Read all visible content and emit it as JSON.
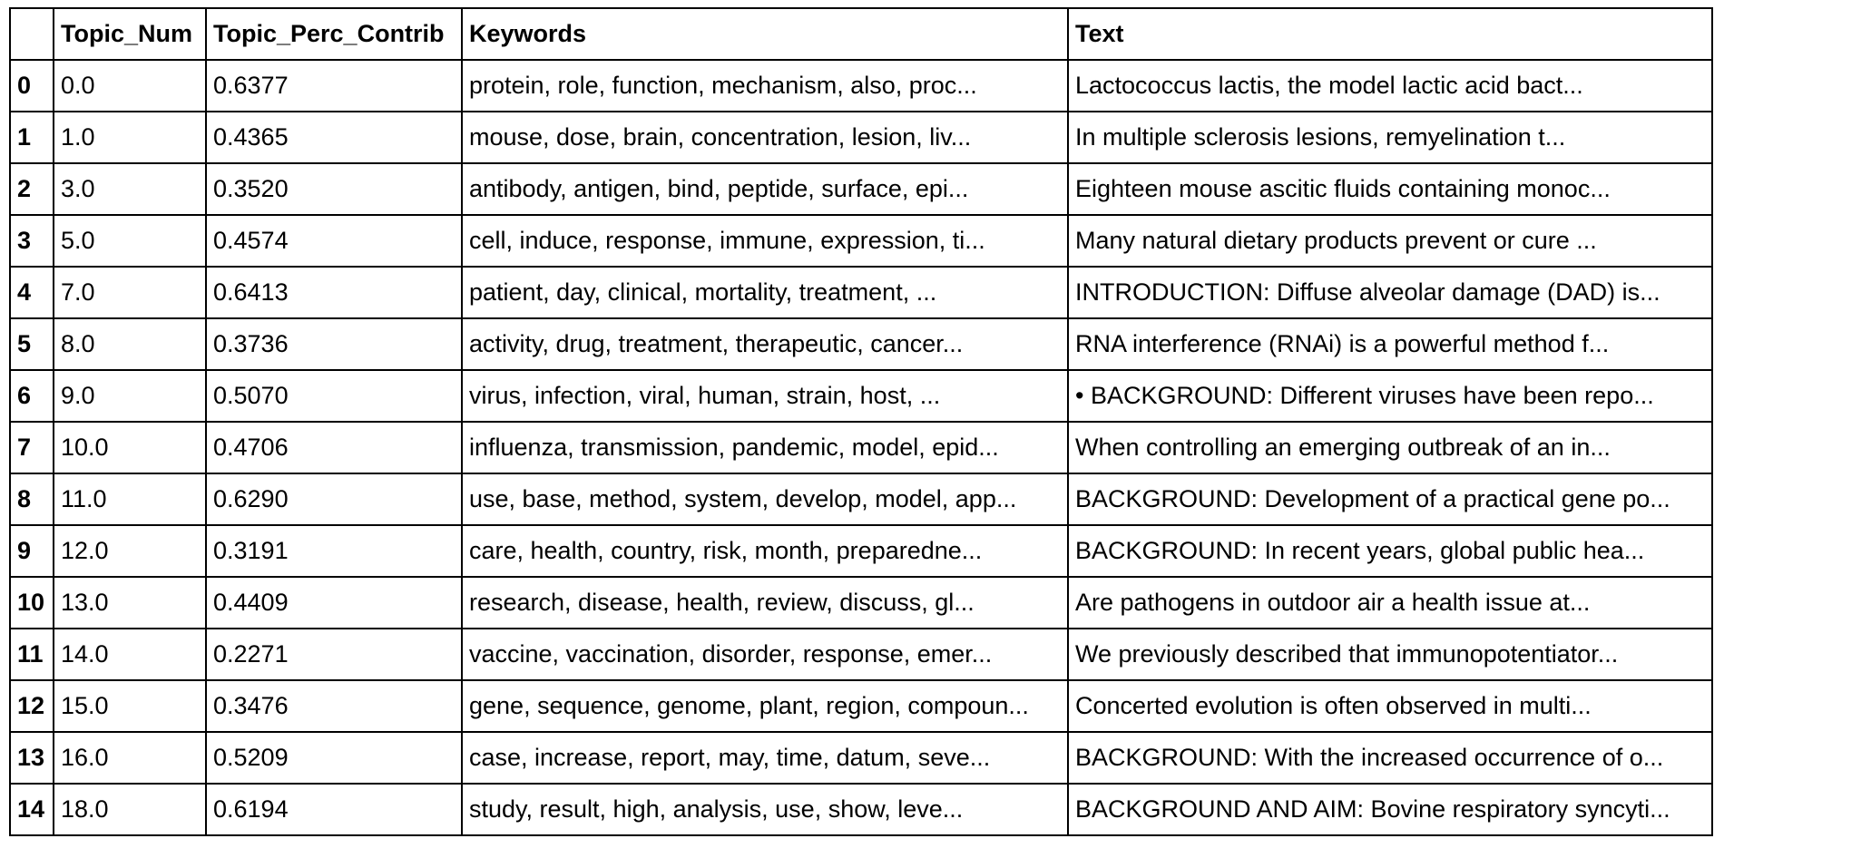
{
  "table": {
    "columns": [
      "",
      "Topic_Num",
      "Topic_Perc_Contrib",
      "Keywords",
      "Text"
    ],
    "rows": [
      {
        "index": "0",
        "topic_num": "0.0",
        "perc": "0.6377",
        "keywords": "protein, role, function, mechanism, also, proc...",
        "text": "Lactococcus lactis, the model lactic acid bact..."
      },
      {
        "index": "1",
        "topic_num": "1.0",
        "perc": "0.4365",
        "keywords": "mouse, dose, brain, concentration, lesion, liv...",
        "text": "In multiple sclerosis lesions, remyelination t..."
      },
      {
        "index": "2",
        "topic_num": "3.0",
        "perc": "0.3520",
        "keywords": "antibody, antigen, bind, peptide, surface, epi...",
        "text": "Eighteen mouse ascitic fluids containing monoc..."
      },
      {
        "index": "3",
        "topic_num": "5.0",
        "perc": "0.4574",
        "keywords": "cell, induce, response, immune, expression, ti...",
        "text": "Many natural dietary products prevent or cure ..."
      },
      {
        "index": "4",
        "topic_num": "7.0",
        "perc": "0.6413",
        "keywords": "patient, day, clinical, mortality, treatment, ...",
        "text": "INTRODUCTION: Diffuse alveolar damage (DAD) is..."
      },
      {
        "index": "5",
        "topic_num": "8.0",
        "perc": "0.3736",
        "keywords": "activity, drug, treatment, therapeutic, cancer...",
        "text": "RNA interference (RNAi) is a powerful method f..."
      },
      {
        "index": "6",
        "topic_num": "9.0",
        "perc": "0.5070",
        "keywords": "virus, infection, viral, human, strain, host, ...",
        "text": "• BACKGROUND: Different viruses have been repo..."
      },
      {
        "index": "7",
        "topic_num": "10.0",
        "perc": "0.4706",
        "keywords": "influenza, transmission, pandemic, model, epid...",
        "text": "When controlling an emerging outbreak of an in..."
      },
      {
        "index": "8",
        "topic_num": "11.0",
        "perc": "0.6290",
        "keywords": "use, base, method, system, develop, model, app...",
        "text": "BACKGROUND: Development of a practical gene po..."
      },
      {
        "index": "9",
        "topic_num": "12.0",
        "perc": "0.3191",
        "keywords": "care, health, country, risk, month, preparedne...",
        "text": "BACKGROUND: In recent years, global public hea..."
      },
      {
        "index": "10",
        "topic_num": "13.0",
        "perc": "0.4409",
        "keywords": "research, disease, health, review, discuss, gl...",
        "text": "Are pathogens in outdoor air a health issue at..."
      },
      {
        "index": "11",
        "topic_num": "14.0",
        "perc": "0.2271",
        "keywords": "vaccine, vaccination, disorder, response, emer...",
        "text": "We previously described that immunopotentiator..."
      },
      {
        "index": "12",
        "topic_num": "15.0",
        "perc": "0.3476",
        "keywords": "gene, sequence, genome, plant, region, compoun...",
        "text": "Concerted evolution is often observed in multi..."
      },
      {
        "index": "13",
        "topic_num": "16.0",
        "perc": "0.5209",
        "keywords": "case, increase, report, may, time, datum, seve...",
        "text": "BACKGROUND: With the increased occurrence of o..."
      },
      {
        "index": "14",
        "topic_num": "18.0",
        "perc": "0.6194",
        "keywords": "study, result, high, analysis, use, show, leve...",
        "text": "BACKGROUND AND AIM: Bovine respiratory syncyti..."
      }
    ]
  }
}
